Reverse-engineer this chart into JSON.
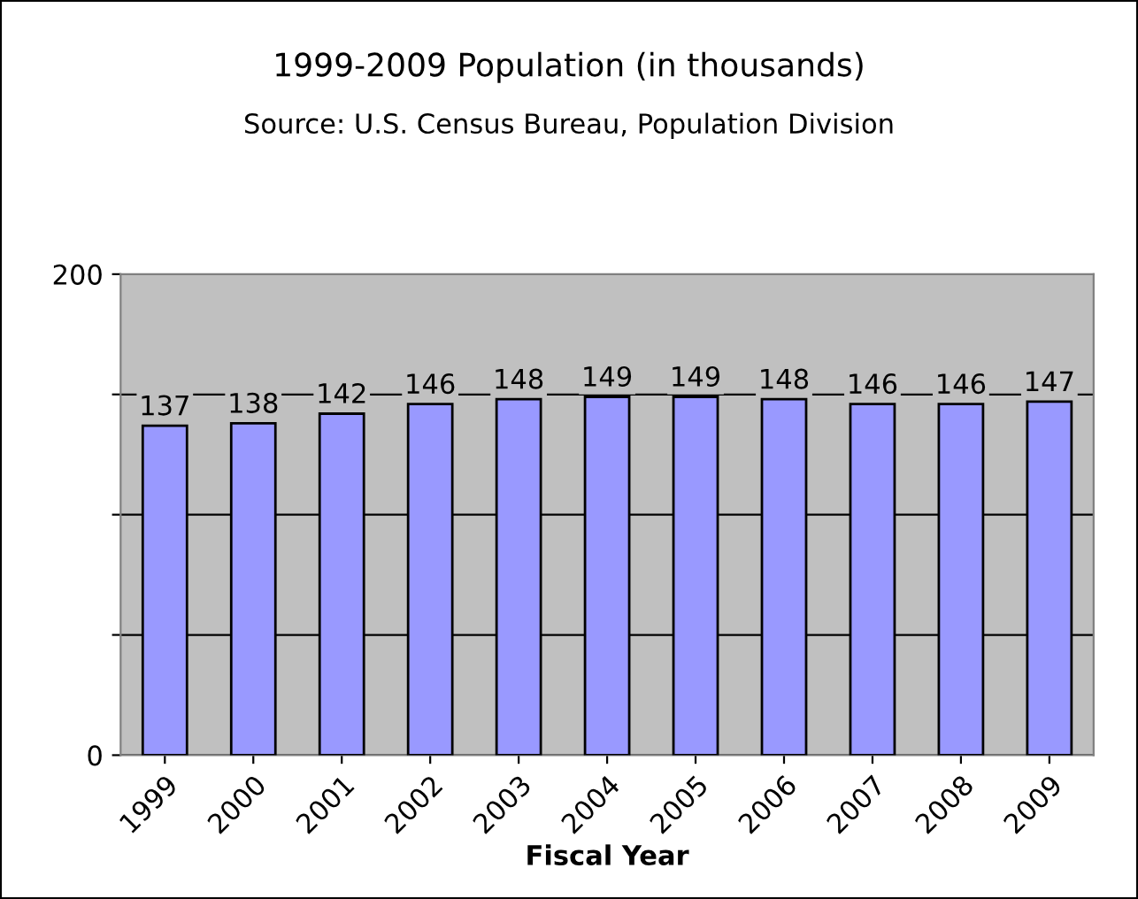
{
  "chart_data": {
    "type": "bar",
    "title": "1999-2009 Population (in thousands)",
    "subtitle": "Source: U.S. Census Bureau, Population Division",
    "xlabel": "Fiscal Year",
    "categories": [
      "1999",
      "2000",
      "2001",
      "2002",
      "2003",
      "2004",
      "2005",
      "2006",
      "2007",
      "2008",
      "2009"
    ],
    "values": [
      137,
      138,
      142,
      146,
      148,
      149,
      149,
      148,
      146,
      146,
      147
    ],
    "color": "#9999ff",
    "ylim": [
      0,
      200
    ],
    "yticks": [
      0,
      {
        "value": 50,
        "label": null
      },
      {
        "value": 100,
        "label": null
      },
      {
        "value": 150,
        "label": null
      },
      200
    ],
    "grid": "y",
    "data_labels": true
  }
}
